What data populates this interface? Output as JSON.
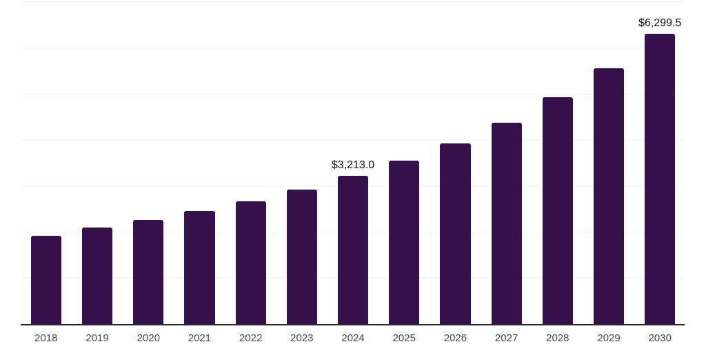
{
  "chart_data": {
    "type": "bar",
    "title": "",
    "xlabel": "",
    "ylabel": "",
    "categories": [
      "2018",
      "2019",
      "2020",
      "2021",
      "2022",
      "2023",
      "2024",
      "2025",
      "2026",
      "2027",
      "2028",
      "2029",
      "2030"
    ],
    "values": [
      1920,
      2100,
      2260,
      2460,
      2670,
      2920,
      3213.0,
      3545,
      3920,
      4375,
      4920,
      5545,
      6299.5
    ],
    "labels": [
      "",
      "",
      "",
      "",
      "",
      "",
      "$3,213.0",
      "",
      "",
      "",
      "",
      "",
      "$6,299.5"
    ],
    "ylim": [
      0,
      7000
    ],
    "grid_step": 1000,
    "grid": "horizontal",
    "legend_position": "none",
    "colors": {
      "bar": "#36104b",
      "axis": "#262626",
      "grid": "#f2f2f2",
      "value_label": "#141414",
      "tick_label": "#454545",
      "background": "#ffffff"
    }
  }
}
